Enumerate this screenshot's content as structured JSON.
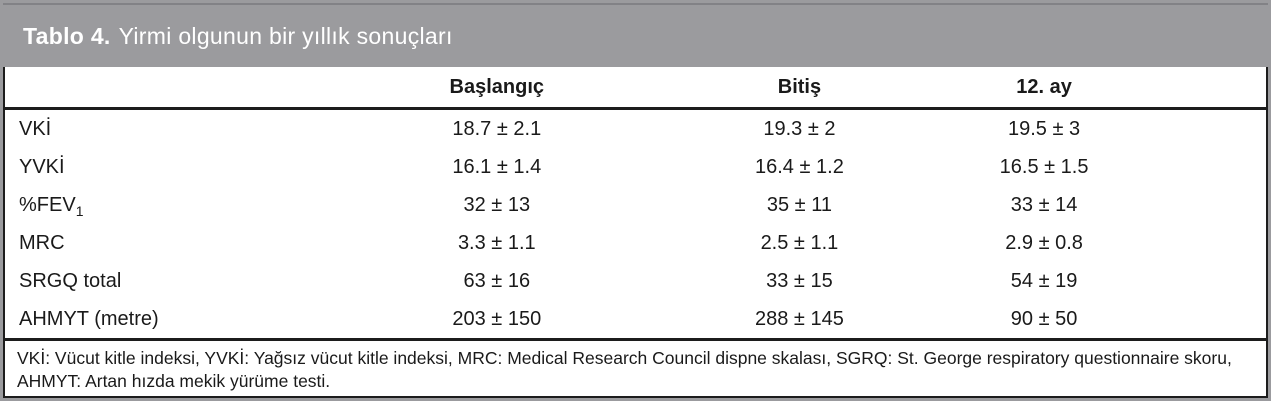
{
  "title": {
    "label": "Tablo 4.",
    "text": "Yirmi olgunun bir yıllık sonuçları"
  },
  "table": {
    "columns": [
      "",
      "Başlangıç",
      "Bitiş",
      "12. ay"
    ],
    "rows": [
      {
        "label": "VKİ",
        "values": [
          "18.7 ± 2.1",
          "19.3 ± 2",
          "19.5 ± 3"
        ]
      },
      {
        "label": "YVKİ",
        "values": [
          "16.1 ± 1.4",
          "16.4 ± 1.2",
          "16.5 ± 1.5"
        ]
      },
      {
        "label": "%FEV",
        "label_sub": "1",
        "values": [
          "32 ± 13",
          "35 ± 11",
          "33 ± 14"
        ]
      },
      {
        "label": "MRC",
        "values": [
          "3.3 ± 1.1",
          "2.5 ± 1.1",
          "2.9 ± 0.8"
        ]
      },
      {
        "label": "SRGQ total",
        "values": [
          "63 ± 16",
          "33 ± 15",
          "54 ± 19"
        ]
      },
      {
        "label": "AHMYT (metre)",
        "values": [
          "203 ± 150",
          "288 ± 145",
          "90 ± 50"
        ]
      }
    ]
  },
  "footnote": "VKİ: Vücut kitle indeksi, YVKİ: Yağsız vücut kitle indeksi, MRC: Medical Research Council dispne skalası, SGRQ: St. George respiratory questionnaire skoru, AHMYT: Artan hızda mekik yürüme testi.",
  "colors": {
    "band_gray": "#9b9b9e",
    "rule_black": "#1c1c1c",
    "title_text": "#ffffff"
  }
}
